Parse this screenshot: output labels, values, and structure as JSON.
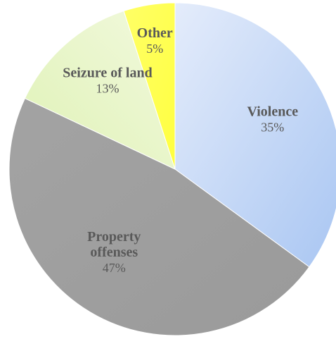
{
  "chart_data": {
    "type": "pie",
    "slices": [
      {
        "label": "Violence",
        "value": 35,
        "value_label": "35%",
        "color": "#c5d8f7"
      },
      {
        "label": "Property offenses",
        "value": 47,
        "value_label": "47%",
        "color": "#a6a6a6"
      },
      {
        "label": "Seizure of land",
        "value": 13,
        "value_label": "13%",
        "color": "#e6f5c2"
      },
      {
        "label": "Other",
        "value": 5,
        "value_label": "5%",
        "color": "#ffff55"
      }
    ],
    "start_angle": "12 o'clock",
    "direction": "clockwise",
    "data_labels": "inside, category name and percentage"
  }
}
